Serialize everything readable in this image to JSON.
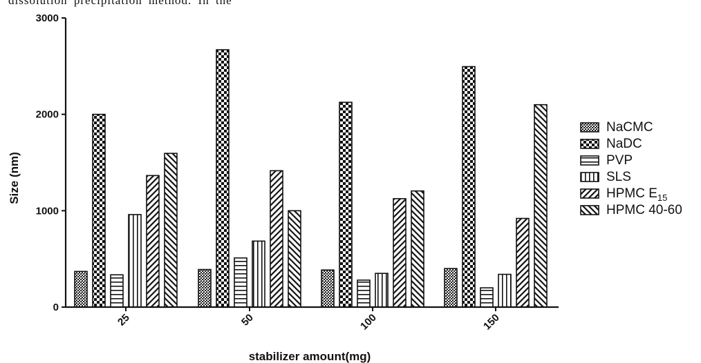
{
  "page_fragment_text": "dissolution precipitation method. In the",
  "chart_data": {
    "type": "bar",
    "title": "",
    "xlabel": "stabilizer amount(mg)",
    "ylabel": "Size (nm)",
    "ylim": [
      0,
      3000
    ],
    "yticks": [
      "0",
      "1000",
      "2000",
      "3000"
    ],
    "categories": [
      "25",
      "50",
      "100",
      "150"
    ],
    "series": [
      {
        "name": "NaCMC",
        "legend_main": "NaCMC",
        "legend_sub": "",
        "pattern": "crosshatch-dense",
        "values": [
          370,
          390,
          385,
          400
        ]
      },
      {
        "name": "NaDC",
        "legend_main": "NaDC",
        "legend_sub": "",
        "pattern": "checker",
        "values": [
          2000,
          2670,
          2125,
          2495
        ]
      },
      {
        "name": "PVP",
        "legend_main": "PVP",
        "legend_sub": "",
        "pattern": "horizontal-lines",
        "values": [
          335,
          510,
          280,
          200
        ]
      },
      {
        "name": "SLS",
        "legend_main": "SLS",
        "legend_sub": "",
        "pattern": "vertical-lines",
        "values": [
          960,
          685,
          350,
          340
        ]
      },
      {
        "name": "HPMC E15",
        "legend_main": "HPMC E",
        "legend_sub": "15",
        "pattern": "diagonal-up",
        "values": [
          1365,
          1415,
          1125,
          920
        ]
      },
      {
        "name": "HPMC 40-60",
        "legend_main": "HPMC 40-60",
        "legend_sub": "",
        "pattern": "diagonal-down",
        "values": [
          1595,
          1000,
          1205,
          2100
        ]
      }
    ],
    "grid": false,
    "legend_position": "right"
  }
}
